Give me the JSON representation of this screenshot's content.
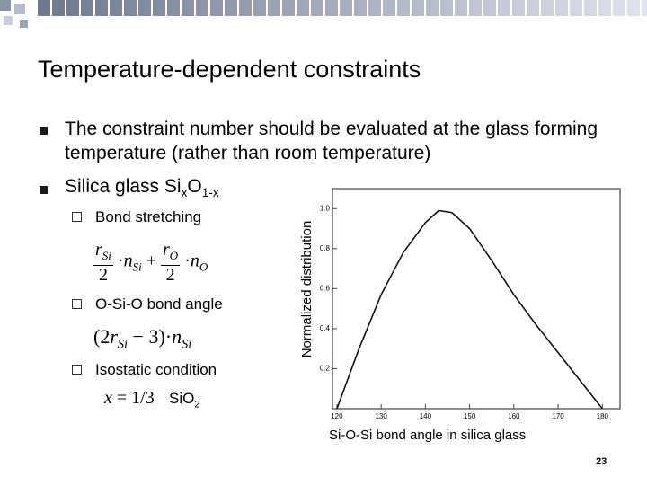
{
  "header": {
    "title": "Temperature-dependent constraints"
  },
  "bullets": [
    {
      "text": "The constraint number should be evaluated at the glass forming temperature (rather than room temperature)"
    },
    {
      "text": "Silica glass Si",
      "sub1": "x",
      "mid": "O",
      "sub2": "1-x"
    }
  ],
  "sub_bullets": [
    "Bond stretching",
    "O-Si-O bond angle",
    "Isostatic condition"
  ],
  "formulas": {
    "r": "r",
    "n": "n",
    "Si": "Si",
    "O": "O",
    "two": "2",
    "plus": "+",
    "dot": "·",
    "open": "(",
    "close": ")",
    "minus": "−",
    "three": "3",
    "x": "x",
    "eq": "=",
    "third": "1/3"
  },
  "silica": {
    "base": "SiO",
    "sub": "2"
  },
  "chart_data": {
    "type": "line",
    "y_label": "Normalized distribution",
    "x": [
      120,
      125,
      130,
      135,
      140,
      143,
      146,
      150,
      155,
      160,
      165,
      170,
      175,
      180
    ],
    "values": [
      0,
      0.3,
      0.57,
      0.78,
      0.93,
      0.99,
      0.98,
      0.9,
      0.74,
      0.57,
      0.42,
      0.28,
      0.14,
      0
    ],
    "color": "#111111",
    "xlim": [
      119,
      184
    ],
    "ylim": [
      0,
      1.1
    ],
    "xticks": [
      120,
      130,
      140,
      150,
      160,
      170,
      180
    ],
    "yticks": [
      0.2,
      0.4,
      0.6,
      0.8,
      {
        "value": 1,
        "label": "1.0"
      }
    ]
  },
  "caption": "Si-O-Si bond angle in silica glass",
  "page_number": "23"
}
